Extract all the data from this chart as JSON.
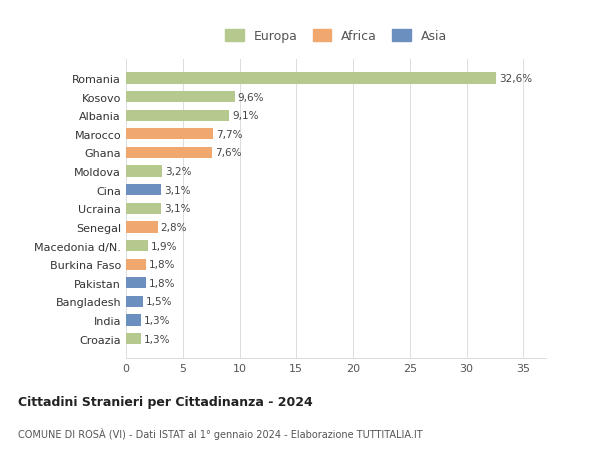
{
  "countries": [
    "Romania",
    "Kosovo",
    "Albania",
    "Marocco",
    "Ghana",
    "Moldova",
    "Cina",
    "Ucraina",
    "Senegal",
    "Macedonia d/N.",
    "Burkina Faso",
    "Pakistan",
    "Bangladesh",
    "India",
    "Croazia"
  ],
  "values": [
    32.6,
    9.6,
    9.1,
    7.7,
    7.6,
    3.2,
    3.1,
    3.1,
    2.8,
    1.9,
    1.8,
    1.8,
    1.5,
    1.3,
    1.3
  ],
  "labels": [
    "32,6%",
    "9,6%",
    "9,1%",
    "7,7%",
    "7,6%",
    "3,2%",
    "3,1%",
    "3,1%",
    "2,8%",
    "1,9%",
    "1,8%",
    "1,8%",
    "1,5%",
    "1,3%",
    "1,3%"
  ],
  "continents": [
    "Europa",
    "Europa",
    "Europa",
    "Africa",
    "Africa",
    "Europa",
    "Asia",
    "Europa",
    "Africa",
    "Europa",
    "Africa",
    "Asia",
    "Asia",
    "Asia",
    "Europa"
  ],
  "colors": {
    "Europa": "#b5c98e",
    "Africa": "#f0a86e",
    "Asia": "#6b8fbf"
  },
  "xlim": [
    0,
    37
  ],
  "xticks": [
    0,
    5,
    10,
    15,
    20,
    25,
    30,
    35
  ],
  "title": "Cittadini Stranieri per Cittadinanza - 2024",
  "subtitle": "COMUNE DI ROSÀ (VI) - Dati ISTAT al 1° gennaio 2024 - Elaborazione TUTTITALIA.IT",
  "bg_color": "#ffffff",
  "grid_color": "#dddddd"
}
